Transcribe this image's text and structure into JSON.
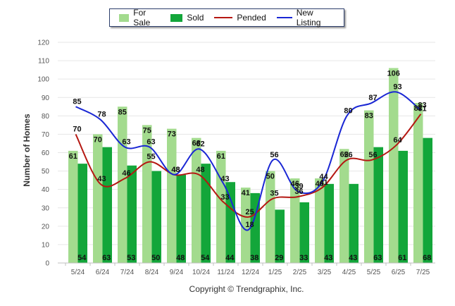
{
  "legend": {
    "for_sale": "For Sale",
    "sold": "Sold",
    "pended": "Pended",
    "new_listing": "New Listing"
  },
  "colors": {
    "for_sale": "#a3db8e",
    "sold": "#13a63a",
    "pended": "#b51812",
    "new_listing": "#1a27d4",
    "grid": "#e6e6e6"
  },
  "copyright": "Copyright © Trendgraphix, Inc.",
  "chart_data": {
    "type": "bar",
    "ylabel": "Number of Homes",
    "xlabel": "",
    "ylim": [
      0,
      120
    ],
    "yticks": [
      0,
      10,
      20,
      30,
      40,
      50,
      60,
      70,
      80,
      90,
      100,
      110,
      120
    ],
    "grid": true,
    "legend_position": "top",
    "categories": [
      "5/24",
      "6/24",
      "7/24",
      "8/24",
      "9/24",
      "10/24",
      "11/24",
      "12/24",
      "1/25",
      "2/25",
      "3/25",
      "4/25",
      "5/25",
      "6/25",
      "7/25"
    ],
    "series": [
      {
        "name": "For Sale",
        "kind": "bar",
        "values": [
          61,
          70,
          85,
          75,
          73,
          68,
          61,
          41,
          50,
          46,
          46,
          62,
          83,
          106,
          87
        ]
      },
      {
        "name": "Sold",
        "kind": "bar",
        "values": [
          54,
          63,
          53,
          50,
          48,
          54,
          44,
          38,
          29,
          33,
          43,
          43,
          63,
          61,
          68
        ]
      },
      {
        "name": "Pended",
        "kind": "line",
        "values": [
          70,
          43,
          46,
          55,
          48,
          48,
          33,
          25,
          35,
          36,
          41,
          56,
          56,
          64,
          81
        ]
      },
      {
        "name": "New Listing",
        "kind": "line",
        "values": [
          85,
          78,
          63,
          63,
          48,
          62,
          43,
          18,
          56,
          39,
          44,
          80,
          87,
          93,
          83
        ]
      }
    ]
  }
}
